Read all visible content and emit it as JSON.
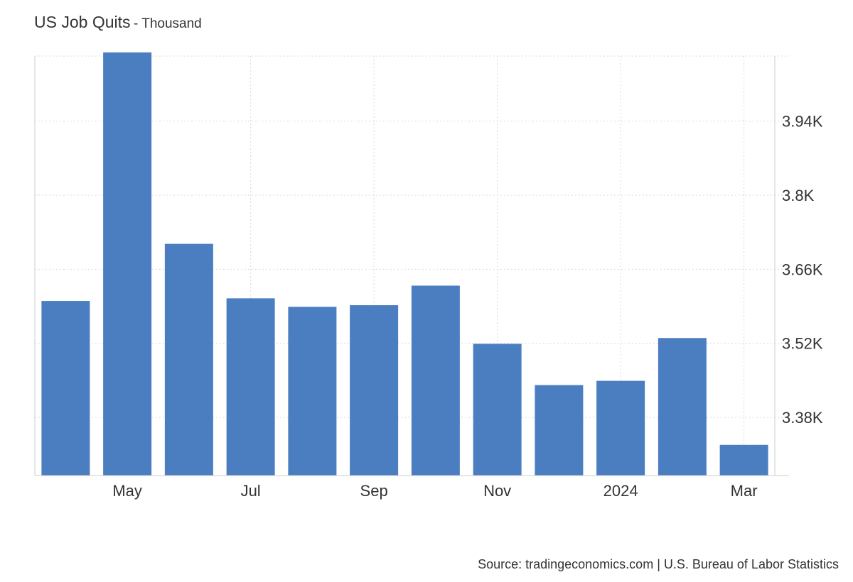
{
  "header": {
    "title": "US Job Quits",
    "unit_suffix": "- Thousand"
  },
  "footer": {
    "source": "Source: tradingeconomics.com | U.S. Bureau of Labor Statistics"
  },
  "colors": {
    "bar": "#4a7ec1",
    "grid": "#d9d9d9",
    "axis": "#cccccc",
    "text": "#333333"
  },
  "chart_data": {
    "type": "bar",
    "title": "US Job Quits",
    "unit": "Thousand",
    "categories": [
      "Apr 2023",
      "May 2023",
      "Jun 2023",
      "Jul 2023",
      "Aug 2023",
      "Sep 2023",
      "Oct 2023",
      "Nov 2023",
      "Dec 2023",
      "Jan 2024",
      "Feb 2024",
      "Mar 2024"
    ],
    "values": [
      3600,
      4070,
      3708,
      3605,
      3589,
      3592,
      3629,
      3519,
      3441,
      3449,
      3530,
      3328
    ],
    "x_tick_labels": [
      {
        "index": 1,
        "label": "May"
      },
      {
        "index": 3,
        "label": "Jul"
      },
      {
        "index": 5,
        "label": "Sep"
      },
      {
        "index": 7,
        "label": "Nov"
      },
      {
        "index": 9,
        "label": "2024"
      },
      {
        "index": 11,
        "label": "Mar"
      }
    ],
    "y_ticks": [
      3380,
      3520,
      3660,
      3800,
      3940
    ],
    "y_tick_labels": [
      "3.38K",
      "3.52K",
      "3.66K",
      "3.8K",
      "3.94K"
    ],
    "ylim": [
      3270,
      4063
    ],
    "y_axis_position": "right",
    "grid": true,
    "legend": false
  }
}
